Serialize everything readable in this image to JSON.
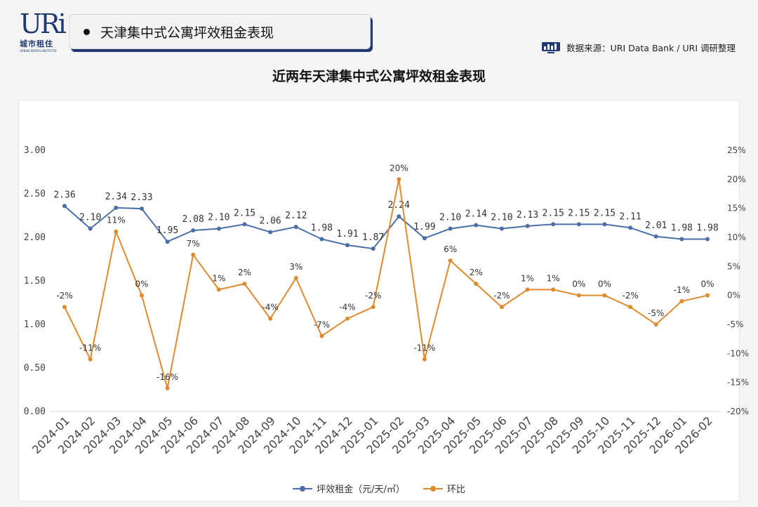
{
  "header": {
    "logo_text": "URi",
    "logo_sub": "城市租住",
    "logo_tiny": "URBAN RENTAL INSTITUTE",
    "banner_title": "天津集中式公寓坪效租金表现",
    "source_icon": "chart-monitor-icon",
    "source_text": "数据来源：URI Data Bank / URI 调研整理"
  },
  "colors": {
    "rent": "#4a6fa8",
    "mom": "#e08a2e",
    "brand": "#1f3a73"
  },
  "chart_data": {
    "type": "line",
    "title": "近两年天津集中式公寓坪效租金表现",
    "categories": [
      "2024-01",
      "2024-02",
      "2024-03",
      "2024-04",
      "2024-05",
      "2024-06",
      "2024-07",
      "2024-08",
      "2024-09",
      "2024-10",
      "2024-11",
      "2024-12",
      "2025-01",
      "2025-02",
      "2025-03",
      "2025-04",
      "2025-05",
      "2025-06",
      "2025-07",
      "2025-08",
      "2025-09",
      "2025-10",
      "2025-11",
      "2025-12",
      "2026-01",
      "2026-02"
    ],
    "series": [
      {
        "name": "坪效租金（元/天/㎡）",
        "axis": "left",
        "values": [
          2.36,
          2.1,
          2.34,
          2.33,
          1.95,
          2.08,
          2.1,
          2.15,
          2.06,
          2.12,
          1.98,
          1.91,
          1.87,
          2.24,
          1.99,
          2.1,
          2.14,
          2.1,
          2.13,
          2.15,
          2.15,
          2.15,
          2.11,
          2.01,
          1.98,
          1.98
        ],
        "labels": [
          "2.36",
          "2.10",
          "2.34",
          "2.33",
          "1.95",
          "2.08",
          "2.10",
          "2.15",
          "2.06",
          "2.12",
          "1.98",
          "1.91",
          "1.87",
          "2.24",
          "1.99",
          "2.10",
          "2.14",
          "2.10",
          "2.13",
          "2.15",
          "2.15",
          "2.15",
          "2.11",
          "2.01",
          "1.98",
          "1.98"
        ]
      },
      {
        "name": "环比",
        "axis": "right",
        "values": [
          -2,
          -11,
          11,
          0,
          -16,
          7,
          1,
          2,
          -4,
          3,
          -7,
          -4,
          -2,
          20,
          -11,
          6,
          2,
          -2,
          1,
          1,
          0,
          0,
          -2,
          -5,
          -1,
          0
        ],
        "labels": [
          "-2%",
          "-11%",
          "11%",
          "0%",
          "-16%",
          "7%",
          "1%",
          "2%",
          "-4%",
          "3%",
          "-7%",
          "-4%",
          "-2%",
          "20%",
          "-11%",
          "6%",
          "2%",
          "-2%",
          "1%",
          "1%",
          "0%",
          "0%",
          "-2%",
          "-5%",
          "-1%",
          "0%"
        ]
      }
    ],
    "left_axis": {
      "ylim": [
        0,
        3
      ],
      "ticks": [
        "0.00",
        "0.50",
        "1.00",
        "1.50",
        "2.00",
        "2.50",
        "3.00"
      ]
    },
    "right_axis": {
      "ylim": [
        -20,
        25
      ],
      "ticks": [
        "-20%",
        "-15%",
        "-10%",
        "-5%",
        "0%",
        "5%",
        "10%",
        "15%",
        "20%",
        "25%"
      ]
    },
    "grid": false,
    "legend_position": "bottom-center"
  }
}
